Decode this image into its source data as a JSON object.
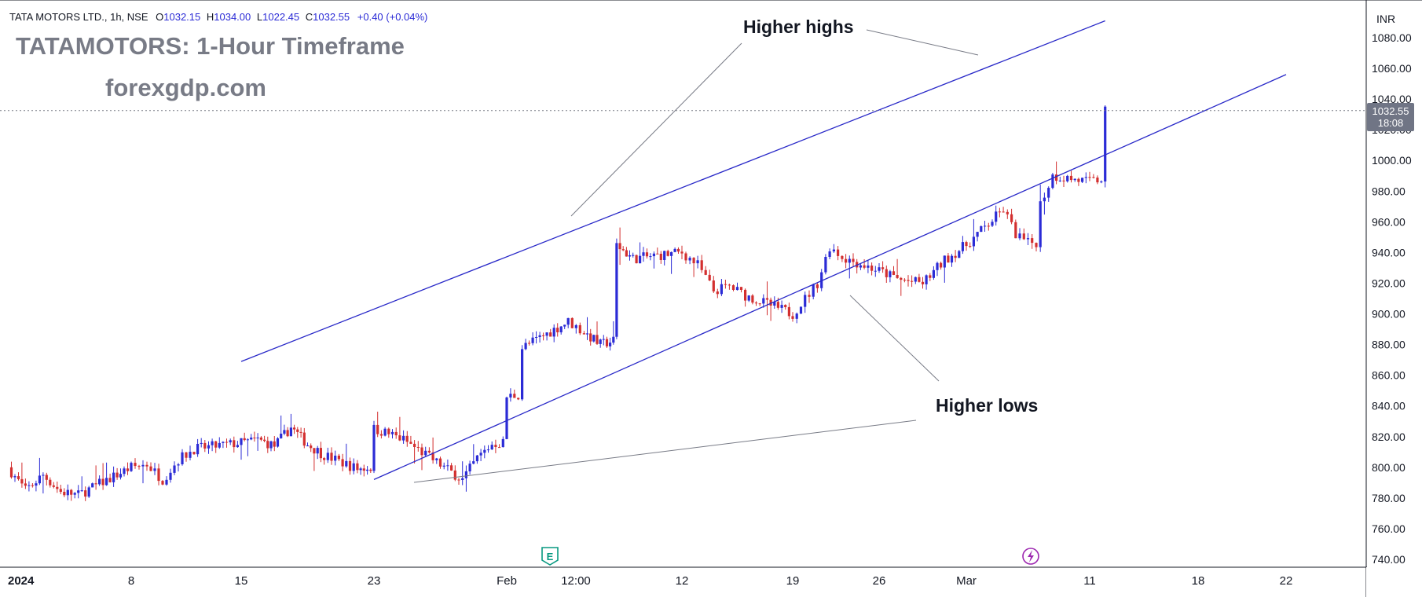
{
  "header": {
    "symbol": "TATA MOTORS LTD., 1h, NSE",
    "open_label": "O",
    "open": "1032.15",
    "high_label": "H",
    "high": "1034.00",
    "low_label": "L",
    "low": "1022.45",
    "close_label": "C",
    "close": "1032.55",
    "change": "+0.40 (+0.04%)"
  },
  "watermark": {
    "title": "TATAMOTORS: 1-Hour Timeframe",
    "site": "forexgdp.com"
  },
  "annotations": {
    "higher_highs": "Higher highs",
    "higher_lows": "Higher lows"
  },
  "price_axis": {
    "currency": "INR",
    "last_price": "1032.55",
    "countdown": "18:08"
  },
  "markers": {
    "earnings": "E"
  },
  "colors": {
    "up": "#2b2bd6",
    "down": "#d32f2f",
    "channel": "#2929c8",
    "pointer": "#787b86",
    "grid": "#ffffff",
    "price_tag": "#707585",
    "earnings_marker": "#089981",
    "dividend_marker": "#9c27b0"
  },
  "chart_data": {
    "type": "candlestick",
    "instrument": "TATA MOTORS LTD.",
    "interval": "1h",
    "exchange": "NSE",
    "y_ticks": [
      "740.00",
      "760.00",
      "780.00",
      "800.00",
      "820.00",
      "840.00",
      "860.00",
      "880.00",
      "900.00",
      "920.00",
      "940.00",
      "960.00",
      "980.00",
      "1000.00",
      "1020.00",
      "1040.00",
      "1060.00",
      "1080.00"
    ],
    "ylim": [
      732,
      1090
    ],
    "x_ticks": [
      {
        "label": "2024",
        "bold": true,
        "date": "2024-01-01"
      },
      {
        "label": "8",
        "bold": false,
        "date": "2024-01-08"
      },
      {
        "label": "15",
        "bold": false,
        "date": "2024-01-15"
      },
      {
        "label": "23",
        "bold": false,
        "date": "2024-01-23"
      },
      {
        "label": "Feb",
        "bold": false,
        "date": "2024-02-01"
      },
      {
        "label": "12:00",
        "bold": false,
        "date": "2024-02-05 12:00"
      },
      {
        "label": "12",
        "bold": false,
        "date": "2024-02-12"
      },
      {
        "label": "19",
        "bold": false,
        "date": "2024-02-19"
      },
      {
        "label": "26",
        "bold": false,
        "date": "2024-02-26"
      },
      {
        "label": "Mar",
        "bold": false,
        "date": "2024-03-01"
      },
      {
        "label": "11",
        "bold": false,
        "date": "2024-03-11"
      },
      {
        "label": "18",
        "bold": false,
        "date": "2024-03-18"
      },
      {
        "label": "22",
        "bold": false,
        "date": "2024-03-22"
      }
    ],
    "last_close": 1032.55,
    "price_path": [
      {
        "date": "2024-01-01",
        "close": 800
      },
      {
        "date": "2024-01-02",
        "close": 785
      },
      {
        "date": "2024-01-03",
        "close": 795
      },
      {
        "date": "2024-01-04",
        "close": 784
      },
      {
        "date": "2024-01-05",
        "close": 782
      },
      {
        "date": "2024-01-08",
        "close": 800
      },
      {
        "date": "2024-01-09",
        "close": 802
      },
      {
        "date": "2024-01-10",
        "close": 792
      },
      {
        "date": "2024-01-11",
        "close": 805
      },
      {
        "date": "2024-01-12",
        "close": 812
      },
      {
        "date": "2024-01-15",
        "close": 816
      },
      {
        "date": "2024-01-16",
        "close": 818
      },
      {
        "date": "2024-01-17",
        "close": 814
      },
      {
        "date": "2024-01-18",
        "close": 826
      },
      {
        "date": "2024-01-19",
        "close": 815
      },
      {
        "date": "2024-01-20",
        "close": 808
      },
      {
        "date": "2024-01-22",
        "close": 799
      },
      {
        "date": "2024-01-23",
        "close": 825
      },
      {
        "date": "2024-01-24",
        "close": 822
      },
      {
        "date": "2024-01-25",
        "close": 818
      },
      {
        "date": "2024-01-29",
        "close": 792
      },
      {
        "date": "2024-01-30",
        "close": 806
      },
      {
        "date": "2024-01-31",
        "close": 815
      },
      {
        "date": "2024-02-01",
        "close": 846
      },
      {
        "date": "2024-02-02",
        "close": 878
      },
      {
        "date": "2024-02-05",
        "close": 895
      },
      {
        "date": "2024-02-06",
        "close": 888
      },
      {
        "date": "2024-02-07",
        "close": 880
      },
      {
        "date": "2024-02-08",
        "close": 945
      },
      {
        "date": "2024-02-09",
        "close": 936
      },
      {
        "date": "2024-02-12",
        "close": 940
      },
      {
        "date": "2024-02-13",
        "close": 932
      },
      {
        "date": "2024-02-14",
        "close": 915
      },
      {
        "date": "2024-02-15",
        "close": 918
      },
      {
        "date": "2024-02-16",
        "close": 912
      },
      {
        "date": "2024-02-19",
        "close": 900
      },
      {
        "date": "2024-02-20",
        "close": 910
      },
      {
        "date": "2024-02-21",
        "close": 920
      },
      {
        "date": "2024-02-22",
        "close": 944
      },
      {
        "date": "2024-02-23",
        "close": 937
      },
      {
        "date": "2024-02-26",
        "close": 928
      },
      {
        "date": "2024-02-27",
        "close": 922
      },
      {
        "date": "2024-02-28",
        "close": 920
      },
      {
        "date": "2024-02-29",
        "close": 935
      },
      {
        "date": "2024-03-01",
        "close": 945
      },
      {
        "date": "2024-03-04",
        "close": 968
      },
      {
        "date": "2024-03-05",
        "close": 952
      },
      {
        "date": "2024-03-06",
        "close": 946
      },
      {
        "date": "2024-03-07",
        "close": 972
      },
      {
        "date": "2024-03-08",
        "close": 990
      },
      {
        "date": "2024-03-11",
        "close": 986
      },
      {
        "date": "2024-03-12",
        "close": 1032.55
      }
    ],
    "channel": {
      "upper": [
        {
          "date": "2024-01-15",
          "y": 869
        },
        {
          "date": "2024-03-12",
          "y": 1091
        }
      ],
      "lower": [
        {
          "date": "2024-01-23",
          "y": 792
        },
        {
          "date": "2024-03-22",
          "y": 1056
        }
      ]
    },
    "annotation_pointers": {
      "higher_highs": [
        {
          "date": "2024-02-05",
          "y": 954
        },
        {
          "date": "2024-03-05",
          "y": 1072
        }
      ],
      "higher_lows": [
        {
          "date": "2024-01-24",
          "y": 792
        },
        {
          "date": "2024-02-26",
          "y": 915
        }
      ]
    }
  }
}
